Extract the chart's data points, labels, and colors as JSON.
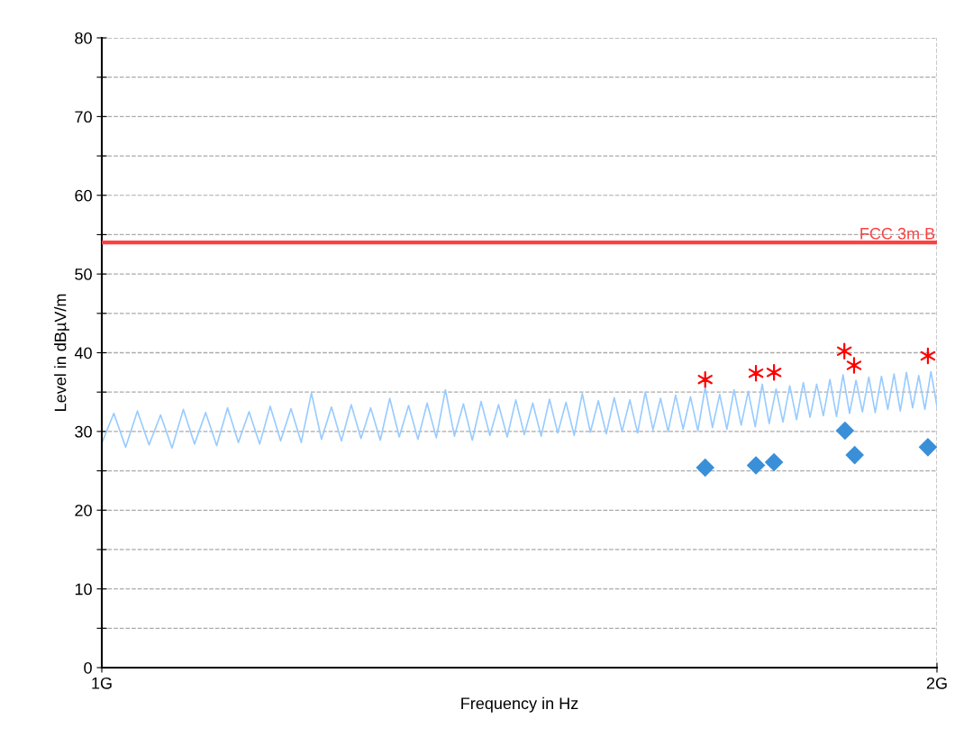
{
  "chart_data": {
    "type": "line",
    "xlabel": "Frequency in Hz",
    "ylabel": "Level in dBµV/m",
    "log": "x",
    "xlim": [
      1,
      2
    ],
    "xticks": [
      {
        "value": 1,
        "label": "1G"
      },
      {
        "value": 2,
        "label": "2G"
      }
    ],
    "ylim": [
      0,
      80
    ],
    "yticks": [
      0,
      {
        "value": 5,
        "label": null
      },
      10,
      {
        "value": 15,
        "label": null
      },
      20,
      {
        "value": 25,
        "label": null
      },
      30,
      {
        "value": 35,
        "label": null
      },
      40,
      {
        "value": 45,
        "label": null
      },
      50,
      {
        "value": 55,
        "label": null
      },
      60,
      {
        "value": 65,
        "label": null
      },
      70,
      {
        "value": 75,
        "label": null
      },
      80
    ],
    "grid": true,
    "legend": false,
    "ref_lines": [
      {
        "axis": "y",
        "value": 54,
        "label": "FCC 3m B",
        "color": "#ff4040",
        "line_style": "solid"
      }
    ],
    "series": [
      {
        "color": "#99ccff",
        "marker": "none",
        "line_style": "solid",
        "x": [
          1.0,
          1.01,
          1.02,
          1.03,
          1.04,
          1.05,
          1.06,
          1.07,
          1.08,
          1.09,
          1.1,
          1.11,
          1.12,
          1.13,
          1.14,
          1.15,
          1.16,
          1.17,
          1.18,
          1.19,
          1.2,
          1.21,
          1.22,
          1.23,
          1.24,
          1.25,
          1.26,
          1.27,
          1.28,
          1.29,
          1.3,
          1.31,
          1.32,
          1.33,
          1.34,
          1.35,
          1.36,
          1.37,
          1.38,
          1.39,
          1.4,
          1.41,
          1.42,
          1.43,
          1.44,
          1.45,
          1.46,
          1.47,
          1.48,
          1.49,
          1.5,
          1.51,
          1.52,
          1.53,
          1.54,
          1.55,
          1.56,
          1.57,
          1.58,
          1.59,
          1.6,
          1.61,
          1.62,
          1.63,
          1.64,
          1.65,
          1.66,
          1.67,
          1.68,
          1.69,
          1.7,
          1.71,
          1.72,
          1.73,
          1.74,
          1.75,
          1.76,
          1.77,
          1.78,
          1.79,
          1.8,
          1.81,
          1.82,
          1.83,
          1.84,
          1.85,
          1.86,
          1.87,
          1.88,
          1.89,
          1.9,
          1.91,
          1.92,
          1.93,
          1.94,
          1.95,
          1.96,
          1.97,
          1.98,
          1.99,
          2.0
        ],
        "values": [
          28.5,
          32.3,
          28.0,
          32.6,
          28.3,
          32.1,
          27.9,
          32.8,
          28.4,
          32.4,
          28.2,
          33.0,
          28.6,
          32.5,
          28.4,
          33.2,
          28.8,
          32.9,
          28.6,
          34.9,
          29.0,
          33.1,
          28.8,
          33.4,
          29.1,
          33.0,
          28.9,
          34.2,
          29.3,
          33.3,
          29.0,
          33.6,
          29.2,
          35.3,
          29.4,
          33.5,
          28.9,
          33.8,
          29.5,
          33.4,
          29.3,
          34.0,
          29.6,
          33.6,
          29.4,
          34.1,
          29.8,
          33.7,
          29.5,
          34.8,
          29.9,
          33.9,
          29.7,
          34.3,
          30.0,
          34.0,
          29.8,
          35.0,
          30.2,
          34.2,
          30.0,
          34.6,
          30.3,
          34.4,
          30.1,
          35.6,
          30.5,
          34.7,
          30.3,
          35.3,
          30.8,
          35.1,
          30.6,
          36.0,
          31.0,
          35.4,
          31.2,
          35.8,
          31.5,
          36.2,
          31.8,
          36.0,
          32.0,
          36.6,
          31.9,
          37.2,
          32.3,
          36.5,
          32.5,
          36.9,
          32.4,
          37.0,
          32.8,
          37.3,
          32.6,
          37.5,
          33.0,
          37.1,
          32.8,
          37.6,
          33.2
        ]
      },
      {
        "type": "scatter",
        "color": "#ff0000",
        "marker": "cross",
        "x": [
          1.65,
          1.721,
          1.747,
          1.852,
          1.867,
          1.985
        ],
        "values": [
          36.6,
          37.4,
          37.5,
          40.2,
          38.4,
          39.6
        ]
      },
      {
        "type": "scatter",
        "color": "#3a8fd9",
        "marker": "diamond",
        "x": [
          1.65,
          1.721,
          1.747,
          1.853,
          1.868,
          1.985
        ],
        "values": [
          25.4,
          25.7,
          26.1,
          30.1,
          27.0,
          28.0
        ]
      }
    ]
  }
}
